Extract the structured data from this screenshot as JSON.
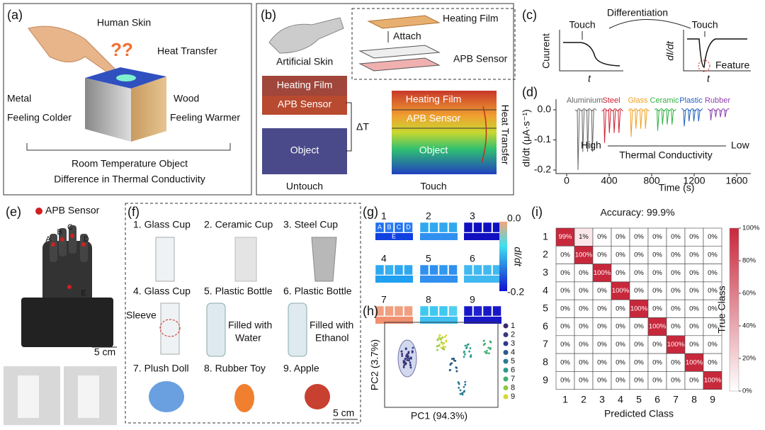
{
  "panels": {
    "a": {
      "label": "(a)",
      "human_skin": "Human Skin",
      "question": "??",
      "heat_transfer": "Heat Transfer",
      "metal": "Metal",
      "feeling_colder": "Feeling Colder",
      "wood": "Wood",
      "feeling_warmer": "Feeling Warmer",
      "caption": [
        "Room Temperature Object",
        "Difference in Thermal Conductivity"
      ]
    },
    "b": {
      "label": "(b)",
      "heating_film": "Heating Film",
      "attach": "Attach",
      "apb_sensor": "APB Sensor",
      "artificial_skin": "Artificial Skin",
      "left_layers": [
        "Heating Film",
        "APB Sensor",
        "Object"
      ],
      "delta_t": "ΔT",
      "right_layers": [
        "Heating Film",
        "APB Sensor",
        "Object"
      ],
      "heat_transfer": "Heat Transfer",
      "untouch": "Untouch",
      "touch": "Touch"
    },
    "c": {
      "label": "(c)",
      "touch_left": "Touch",
      "differentiation": "Differentiation",
      "touch_right": "Touch",
      "y_left": "Cuurent",
      "y_right": "dI/dt",
      "x_left": "t",
      "x_right": "t",
      "feature": "Feature"
    },
    "d": {
      "label": "(d)",
      "materials": [
        "Aluminium",
        "Steel",
        "Glass",
        "Ceramic",
        "Plastic",
        "Rubber"
      ],
      "yticks": [
        "0.0",
        "-0.1",
        "-0.2"
      ],
      "xticks": [
        "0",
        "400",
        "800",
        "1200",
        "1600"
      ],
      "x_label": "Time (s)",
      "y_label": "dI/dt (μA·s⁻¹)",
      "high": "High",
      "conductivity": "Thermal Conductivity",
      "low": "Low"
    },
    "e": {
      "label": "(e)",
      "legend": "APB Sensor",
      "fingers": [
        "A",
        "B",
        "C",
        "D",
        "E"
      ],
      "scale": "5 cm"
    },
    "f": {
      "label": "(f)",
      "items": [
        "1. Glass Cup",
        "2. Ceramic Cup",
        "3.  Steel Cup",
        "4. Glass Cup",
        "5. Plastic Bottle",
        "6. Plastic Bottle",
        "7. Plush Doll",
        "8.  Rubber Toy",
        "9.     Apple"
      ],
      "sleeve": "Sleeve",
      "water": [
        "Filled with",
        "Water"
      ],
      "ethanol": [
        "Filled with",
        "Ethanol"
      ],
      "scale": "5 cm"
    },
    "g": {
      "label": "(g)",
      "maps": [
        "1",
        "2",
        "3",
        "4",
        "5",
        "6",
        "7",
        "8",
        "9"
      ],
      "cells": [
        "A",
        "B",
        "C",
        "D",
        "E"
      ],
      "cbar_ticks": [
        "0.0",
        "-0.2"
      ],
      "cbar_label": "dI/dt"
    },
    "h": {
      "label": "(h)",
      "legend": [
        "1",
        "2",
        "3",
        "4",
        "5",
        "6",
        "7",
        "8",
        "9"
      ],
      "x_label": "PC1 (94.3%)",
      "y_label": "PC2 (3.7%)"
    },
    "i": {
      "label": "(i)",
      "title": "Accuracy: 99.9%",
      "rows": [
        [
          "99%",
          "1%",
          "0%",
          "0%",
          "0%",
          "0%",
          "0%",
          "0%",
          "0%"
        ],
        [
          "0%",
          "100%",
          "0%",
          "0%",
          "0%",
          "0%",
          "0%",
          "0%",
          "0%"
        ],
        [
          "0%",
          "0%",
          "100%",
          "0%",
          "0%",
          "0%",
          "0%",
          "0%",
          "0%"
        ],
        [
          "0%",
          "0%",
          "0%",
          "100%",
          "0%",
          "0%",
          "0%",
          "0%",
          "0%"
        ],
        [
          "0%",
          "0%",
          "0%",
          "0%",
          "100%",
          "0%",
          "0%",
          "0%",
          "0%"
        ],
        [
          "0%",
          "0%",
          "0%",
          "0%",
          "0%",
          "100%",
          "0%",
          "0%",
          "0%"
        ],
        [
          "0%",
          "0%",
          "0%",
          "0%",
          "0%",
          "0%",
          "100%",
          "0%",
          "0%"
        ],
        [
          "0%",
          "0%",
          "0%",
          "0%",
          "0%",
          "0%",
          "0%",
          "100%",
          "0%"
        ],
        [
          "0%",
          "0%",
          "0%",
          "0%",
          "0%",
          "0%",
          "0%",
          "0%",
          "100%"
        ]
      ],
      "row_labels": [
        "1",
        "2",
        "3",
        "4",
        "5",
        "6",
        "7",
        "8",
        "9"
      ],
      "col_labels": [
        "1",
        "2",
        "3",
        "4",
        "5",
        "6",
        "7",
        "8",
        "9"
      ],
      "x_label": "Predicted Class",
      "y_label": "True Class",
      "cbar_ticks": [
        "100%",
        "80%",
        "60%",
        "40%",
        "20%",
        "0%"
      ]
    }
  }
}
